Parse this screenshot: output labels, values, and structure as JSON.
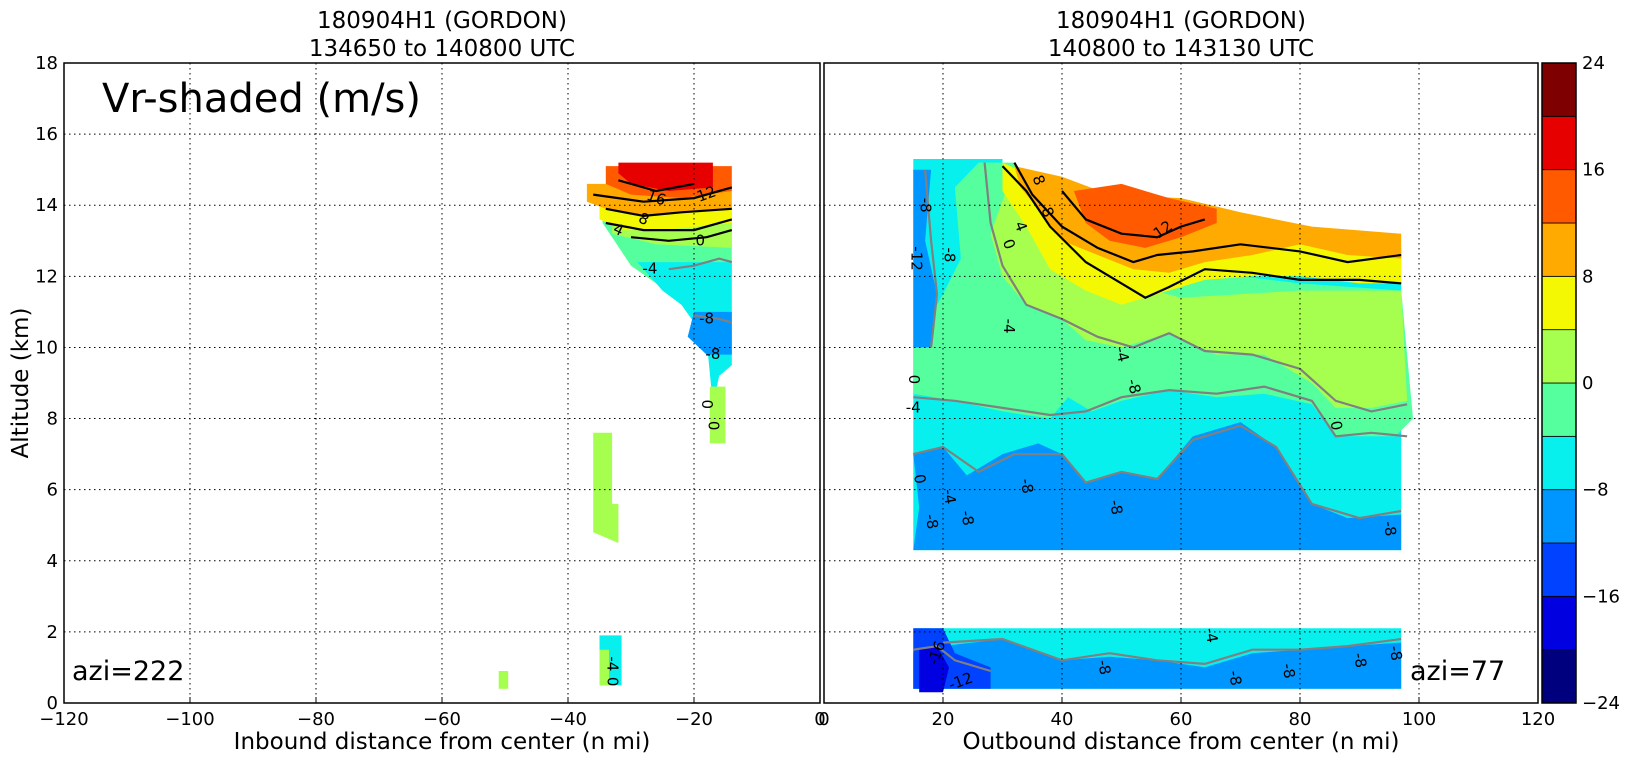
{
  "colors": {
    "levels": [
      "#00007f",
      "#0000e0",
      "#0042ff",
      "#0096ff",
      "#08f0ee",
      "#55ff9e",
      "#a6ff4f",
      "#f4f803",
      "#ffaa00",
      "#ff5a00",
      "#e60000",
      "#7f0000"
    ],
    "contour_zero_and_positive": "#000000",
    "contour_negative": "#808080"
  },
  "annotation": {
    "text": "Vr-shaded (m/s)"
  },
  "chart_data": [
    {
      "type": "contour",
      "panel": "left",
      "title_line1": "180904H1 (GORDON)",
      "title_line2": "134650 to 140800 UTC",
      "xlabel": "Inbound distance from center (n mi)",
      "ylabel": "Altitude (km)",
      "xlim": [
        -120,
        0
      ],
      "ylim": [
        0,
        18
      ],
      "xticks": [
        "−120",
        "−100",
        "−80",
        "−60",
        "−40",
        "−20",
        "0"
      ],
      "yticks": [
        "0",
        "2",
        "4",
        "6",
        "8",
        "10",
        "12",
        "14",
        "16",
        "18"
      ],
      "grid": true,
      "corner_note": "azi=222",
      "contour_labels": [
        {
          "text": "16",
          "x": -26,
          "y": 14.2,
          "rot": 20
        },
        {
          "text": "12",
          "x": -18,
          "y": 14.3,
          "rot": -20
        },
        {
          "text": "8",
          "x": -28,
          "y": 13.6,
          "rot": 25
        },
        {
          "text": "4",
          "x": -32,
          "y": 13.3,
          "rot": 25
        },
        {
          "text": "0",
          "x": -19,
          "y": 13.0,
          "rot": 0
        },
        {
          "text": "-4",
          "x": -27,
          "y": 12.2,
          "rot": 0
        },
        {
          "text": "-8",
          "x": -18,
          "y": 10.8,
          "rot": 0
        },
        {
          "text": "-8",
          "x": -17,
          "y": 9.8,
          "rot": 0
        },
        {
          "text": "0",
          "x": -18,
          "y": 8.4,
          "rot": 90
        },
        {
          "text": "0",
          "x": -17,
          "y": 7.8,
          "rot": 90
        },
        {
          "text": "-4",
          "x": -33,
          "y": 1.1,
          "rot": 90
        },
        {
          "text": "0",
          "x": -33,
          "y": 0.6,
          "rot": 90
        }
      ]
    },
    {
      "type": "contour",
      "panel": "right",
      "title_line1": "180904H1 (GORDON)",
      "title_line2": "140800 to 143130 UTC",
      "xlabel": "Outbound distance from center (n mi)",
      "ylabel": "",
      "xlim": [
        0,
        120
      ],
      "ylim": [
        0,
        18
      ],
      "xticks": [
        "0",
        "20",
        "40",
        "60",
        "80",
        "100",
        "120"
      ],
      "grid": true,
      "corner_note": "azi=77",
      "contour_labels": [
        {
          "text": "8",
          "x": 36,
          "y": 14.7,
          "rot": 70
        },
        {
          "text": "8",
          "x": 37.5,
          "y": 13.8,
          "rot": 70
        },
        {
          "text": "4",
          "x": 33,
          "y": 13.4,
          "rot": 70
        },
        {
          "text": "0",
          "x": 31,
          "y": 12.9,
          "rot": 70
        },
        {
          "text": "12",
          "x": 57,
          "y": 13.3,
          "rot": -35
        },
        {
          "text": "-8",
          "x": 17,
          "y": 14.0,
          "rot": 90
        },
        {
          "text": "-8",
          "x": 21,
          "y": 12.6,
          "rot": 90
        },
        {
          "text": "-12",
          "x": 15.5,
          "y": 12.5,
          "rot": 90
        },
        {
          "text": "-4",
          "x": 31,
          "y": 10.6,
          "rot": 90
        },
        {
          "text": "-4",
          "x": 50,
          "y": 9.8,
          "rot": 75
        },
        {
          "text": "-8",
          "x": 52,
          "y": 8.9,
          "rot": 75
        },
        {
          "text": "0",
          "x": 15,
          "y": 9.1,
          "rot": 90
        },
        {
          "text": "0",
          "x": 86,
          "y": 7.8,
          "rot": 80
        },
        {
          "text": "-4",
          "x": 15,
          "y": 8.3,
          "rot": 0
        },
        {
          "text": "0",
          "x": 16,
          "y": 6.3,
          "rot": 80
        },
        {
          "text": "-4",
          "x": 21,
          "y": 5.8,
          "rot": 80
        },
        {
          "text": "-8",
          "x": 34,
          "y": 6.1,
          "rot": 80
        },
        {
          "text": "-8",
          "x": 18,
          "y": 5.1,
          "rot": 80
        },
        {
          "text": "-8",
          "x": 24,
          "y": 5.2,
          "rot": 80
        },
        {
          "text": "-8",
          "x": 49,
          "y": 5.5,
          "rot": 80
        },
        {
          "text": "-8",
          "x": 95,
          "y": 4.9,
          "rot": 80
        },
        {
          "text": "-4",
          "x": 65,
          "y": 1.9,
          "rot": 80
        },
        {
          "text": "-16",
          "x": 19,
          "y": 1.4,
          "rot": -70
        },
        {
          "text": "-12",
          "x": 23,
          "y": 0.6,
          "rot": -20
        },
        {
          "text": "-8",
          "x": 47,
          "y": 1.0,
          "rot": 80
        },
        {
          "text": "-8",
          "x": 69,
          "y": 0.7,
          "rot": 80
        },
        {
          "text": "-8",
          "x": 78,
          "y": 0.9,
          "rot": 80
        },
        {
          "text": "-8",
          "x": 90,
          "y": 1.2,
          "rot": 80
        },
        {
          "text": "-8",
          "x": 96,
          "y": 1.4,
          "rot": 80
        }
      ]
    },
    {
      "type": "colorbar",
      "levels": [
        -24,
        -20,
        -16,
        -12,
        -8,
        -4,
        0,
        4,
        8,
        12,
        16,
        20,
        24
      ],
      "tick_labels": [
        {
          "value": 24,
          "text": "24"
        },
        {
          "value": 16,
          "text": "16"
        },
        {
          "value": 8,
          "text": "8"
        },
        {
          "value": 0,
          "text": "0"
        },
        {
          "value": -8,
          "text": "−8"
        },
        {
          "value": -16,
          "text": "−16"
        },
        {
          "value": -24,
          "text": "−24"
        }
      ]
    }
  ]
}
